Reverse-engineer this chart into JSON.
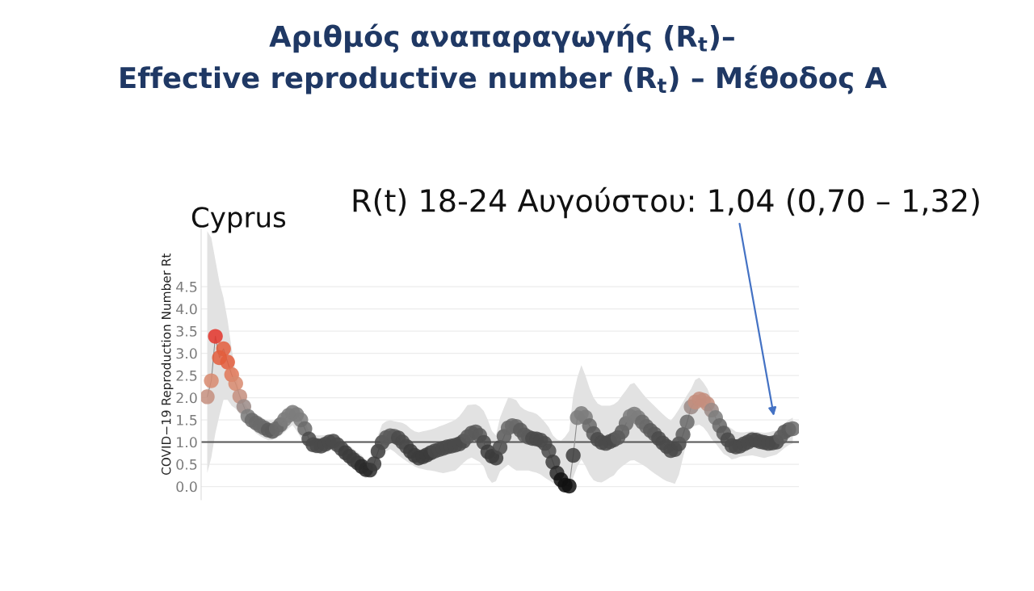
{
  "chart_data": {
    "type": "line",
    "title": "Αριθμός αναπαραγωγής (R$_{t}$)–\nEffective reproductive number (R$_{t}$) – Μέθοδος Α",
    "subtitle": "Cyprus",
    "ylabel": "COVID−19 Reproduction Number Rt",
    "annotations": [
      "R(t) 18-24 Αυγούστου: 1,04 (0,70 – 1,32)"
    ],
    "categories": [
      null,
      null,
      null,
      null,
      null,
      null,
      null,
      null,
      null,
      null,
      null,
      null,
      null,
      null,
      null,
      null,
      null,
      null,
      null,
      null,
      null,
      null,
      null,
      null,
      null,
      null,
      null,
      null,
      null,
      null,
      null,
      null,
      null,
      null,
      null,
      null,
      null,
      null,
      null,
      null,
      null,
      null,
      null,
      null,
      null,
      null,
      null,
      null,
      null,
      null,
      null,
      null,
      null,
      null,
      null,
      null,
      null,
      null,
      null,
      null,
      null,
      null,
      null,
      null,
      null,
      null,
      null,
      null,
      null,
      null,
      null,
      null,
      null,
      null,
      null,
      null,
      null,
      null,
      null,
      null,
      null,
      null,
      null,
      null,
      null,
      null,
      null,
      null,
      null,
      null,
      null,
      null,
      null,
      null,
      null,
      null,
      null,
      null,
      null,
      null,
      null,
      null,
      null,
      null,
      null,
      null,
      null,
      null,
      null,
      null,
      null,
      null,
      null,
      null,
      null,
      null,
      null,
      null,
      null,
      null,
      null,
      null,
      null,
      null,
      null,
      null,
      null,
      null,
      null,
      null,
      null,
      null,
      null,
      null,
      null,
      null,
      null,
      null,
      null,
      null,
      null,
      null,
      null,
      null,
      null
    ],
    "series": [
      {
        "color": "#8c8c8c",
        "values": [
          2.02,
          2.38,
          3.38,
          2.9,
          3.1,
          2.8,
          2.52,
          2.32,
          2.03,
          1.8,
          1.58,
          1.49,
          1.43,
          1.37,
          1.32,
          1.27,
          1.24,
          1.3,
          1.39,
          1.51,
          1.6,
          1.67,
          1.62,
          1.5,
          1.3,
          1.07,
          0.94,
          0.92,
          0.91,
          0.95,
          1.0,
          1.02,
          0.94,
          0.85,
          0.76,
          0.68,
          0.6,
          0.53,
          0.45,
          0.38,
          0.37,
          0.51,
          0.79,
          0.99,
          1.1,
          1.14,
          1.13,
          1.09,
          1.0,
          0.9,
          0.79,
          0.7,
          0.64,
          0.67,
          0.71,
          0.76,
          0.8,
          0.83,
          0.86,
          0.89,
          0.91,
          0.93,
          0.96,
          1.02,
          1.12,
          1.2,
          1.23,
          1.15,
          0.99,
          0.78,
          0.68,
          0.64,
          0.88,
          1.13,
          1.32,
          1.37,
          1.35,
          1.27,
          1.16,
          1.11,
          1.08,
          1.07,
          1.04,
          0.97,
          0.8,
          0.55,
          0.3,
          0.15,
          0.03,
          0.01,
          0.7,
          1.55,
          1.64,
          1.56,
          1.37,
          1.19,
          1.06,
          0.99,
          0.97,
          1.01,
          1.05,
          1.1,
          1.23,
          1.42,
          1.58,
          1.63,
          1.55,
          1.45,
          1.35,
          1.26,
          1.18,
          1.08,
          0.98,
          0.9,
          0.81,
          0.83,
          0.96,
          1.17,
          1.45,
          1.79,
          1.9,
          1.97,
          1.94,
          1.86,
          1.72,
          1.55,
          1.37,
          1.2,
          1.05,
          0.92,
          0.89,
          0.91,
          0.96,
          1.0,
          1.05,
          1.04,
          1.01,
          0.99,
          0.97,
          0.98,
          1.0,
          1.11,
          1.23,
          1.28,
          1.3
        ],
        "upper": [
          5.75,
          5.6,
          5.1,
          4.6,
          4.25,
          3.75,
          3.1,
          2.55,
          2.1,
          1.9,
          1.76,
          1.68,
          1.63,
          1.58,
          1.52,
          1.49,
          1.49,
          1.51,
          1.6,
          1.69,
          1.77,
          1.82,
          1.78,
          1.68,
          1.47,
          1.25,
          1.18,
          1.15,
          1.15,
          1.16,
          1.17,
          1.16,
          1.11,
          1.05,
          0.98,
          0.91,
          0.84,
          0.77,
          0.7,
          0.6,
          0.62,
          0.9,
          1.15,
          1.4,
          1.47,
          1.49,
          1.47,
          1.45,
          1.43,
          1.38,
          1.3,
          1.24,
          1.22,
          1.24,
          1.26,
          1.28,
          1.31,
          1.35,
          1.38,
          1.42,
          1.46,
          1.5,
          1.58,
          1.7,
          1.83,
          1.84,
          1.85,
          1.8,
          1.7,
          1.5,
          1.25,
          1.15,
          1.55,
          1.78,
          2.0,
          1.98,
          1.94,
          1.8,
          1.73,
          1.69,
          1.67,
          1.63,
          1.55,
          1.45,
          1.33,
          1.15,
          1.06,
          1.03,
          1.12,
          1.25,
          2.05,
          2.45,
          2.73,
          2.5,
          2.22,
          2.0,
          1.87,
          1.82,
          1.82,
          1.82,
          1.85,
          1.92,
          2.05,
          2.17,
          2.3,
          2.33,
          2.22,
          2.1,
          1.99,
          1.9,
          1.81,
          1.72,
          1.63,
          1.55,
          1.48,
          1.6,
          1.74,
          1.9,
          2.06,
          2.2,
          2.4,
          2.45,
          2.34,
          2.2,
          1.97,
          1.75,
          1.62,
          1.5,
          1.36,
          1.3,
          1.23,
          1.22,
          1.22,
          1.23,
          1.24,
          1.23,
          1.22,
          1.21,
          1.22,
          1.24,
          1.26,
          1.33,
          1.42,
          1.5,
          1.55
        ],
        "lower": [
          0.3,
          0.65,
          1.2,
          1.6,
          1.95,
          1.95,
          1.82,
          1.75,
          1.63,
          1.52,
          1.4,
          1.29,
          1.2,
          1.13,
          1.08,
          1.04,
          1.05,
          1.09,
          1.14,
          1.22,
          1.31,
          1.38,
          1.25,
          1.1,
          0.96,
          0.79,
          0.76,
          0.73,
          0.75,
          0.78,
          0.8,
          0.83,
          0.8,
          0.7,
          0.59,
          0.5,
          0.4,
          0.31,
          0.24,
          0.18,
          0.24,
          0.36,
          0.55,
          0.73,
          0.79,
          0.84,
          0.78,
          0.7,
          0.63,
          0.57,
          0.51,
          0.45,
          0.41,
          0.39,
          0.37,
          0.36,
          0.34,
          0.32,
          0.3,
          0.32,
          0.34,
          0.36,
          0.44,
          0.53,
          0.61,
          0.65,
          0.6,
          0.55,
          0.45,
          0.2,
          0.08,
          0.12,
          0.34,
          0.42,
          0.49,
          0.42,
          0.36,
          0.36,
          0.36,
          0.36,
          0.33,
          0.31,
          0.27,
          0.2,
          0.14,
          0.08,
          0.0,
          -0.09,
          -0.07,
          -0.02,
          0.2,
          0.45,
          0.61,
          0.46,
          0.27,
          0.14,
          0.1,
          0.09,
          0.14,
          0.2,
          0.25,
          0.37,
          0.45,
          0.52,
          0.58,
          0.59,
          0.54,
          0.49,
          0.43,
          0.36,
          0.29,
          0.23,
          0.17,
          0.12,
          0.09,
          0.06,
          0.27,
          0.65,
          1.03,
          1.32,
          1.37,
          1.39,
          1.33,
          1.22,
          1.07,
          0.97,
          0.85,
          0.73,
          0.68,
          0.61,
          0.63,
          0.67,
          0.68,
          0.69,
          0.7,
          0.68,
          0.66,
          0.64,
          0.67,
          0.69,
          0.72,
          0.79,
          0.87,
          0.93,
          0.97
        ],
        "colors": [
          "#c48e7e",
          "#d88a6e",
          "#e3342a",
          "#e35d3c",
          "#e35d3c",
          "#e35d3c",
          "#e07556",
          "#d88a6e",
          "#c48e7e",
          "#9a8a86",
          "#7c7c7c",
          "#6a6a6a",
          "#6a6a6a",
          "#6a6a6a",
          "#6a6a6a",
          "#5a5a5a",
          "#5a5a5a",
          "#6a6a6a",
          "#6a6a6a",
          "#7c7c7c",
          "#7c7c7c",
          "#7c7c7c",
          "#7c7c7c",
          "#7c7c7c",
          "#6a6a6a",
          "#4a4a4a",
          "#4a4a4a",
          "#4a4a4a",
          "#4a4a4a",
          "#4a4a4a",
          "#4a4a4a",
          "#4a4a4a",
          "#4a4a4a",
          "#4a4a4a",
          "#3c3c3c",
          "#3c3c3c",
          "#3c3c3c",
          "#3c3c3c",
          "#2a2a2a",
          "#2a2a2a",
          "#2a2a2a",
          "#3c3c3c",
          "#3c3c3c",
          "#4a4a4a",
          "#5a5a5a",
          "#5a5a5a",
          "#5a5a5a",
          "#4a4a4a",
          "#4a4a4a",
          "#4a4a4a",
          "#3c3c3c",
          "#3c3c3c",
          "#3c3c3c",
          "#3c3c3c",
          "#3c3c3c",
          "#3c3c3c",
          "#4a4a4a",
          "#4a4a4a",
          "#4a4a4a",
          "#4a4a4a",
          "#4a4a4a",
          "#4a4a4a",
          "#4a4a4a",
          "#4a4a4a",
          "#5a5a5a",
          "#5a5a5a",
          "#5a5a5a",
          "#5a5a5a",
          "#4a4a4a",
          "#3c3c3c",
          "#3c3c3c",
          "#3c3c3c",
          "#4a4a4a",
          "#5a5a5a",
          "#6a6a6a",
          "#6a6a6a",
          "#6a6a6a",
          "#5a5a5a",
          "#5a5a5a",
          "#5a5a5a",
          "#4a4a4a",
          "#4a4a4a",
          "#4a4a4a",
          "#4a4a4a",
          "#4a4a4a",
          "#3c3c3c",
          "#2a2a2a",
          "#111111",
          "#111111",
          "#111111",
          "#3c3c3c",
          "#7c7c7c",
          "#7c7c7c",
          "#7c7c7c",
          "#6a6a6a",
          "#5a5a5a",
          "#4a4a4a",
          "#4a4a4a",
          "#4a4a4a",
          "#4a4a4a",
          "#4a4a4a",
          "#5a5a5a",
          "#5a5a5a",
          "#6a6a6a",
          "#7c7c7c",
          "#7c7c7c",
          "#7c7c7c",
          "#6a6a6a",
          "#6a6a6a",
          "#5a5a5a",
          "#5a5a5a",
          "#4a4a4a",
          "#4a4a4a",
          "#4a4a4a",
          "#4a4a4a",
          "#4a4a4a",
          "#4a4a4a",
          "#5a5a5a",
          "#6a6a6a",
          "#9a8a86",
          "#c48e7e",
          "#c48e7e",
          "#c48e7e",
          "#c48e7e",
          "#9a8a86",
          "#7c7c7c",
          "#6a6a6a",
          "#5a5a5a",
          "#4a4a4a",
          "#4a4a4a",
          "#4a4a4a",
          "#4a4a4a",
          "#4a4a4a",
          "#4a4a4a",
          "#4a4a4a",
          "#4a4a4a",
          "#4a4a4a",
          "#4a4a4a",
          "#4a4a4a",
          "#4a4a4a",
          "#4a4a4a",
          "#5a5a5a",
          "#5a5a5a",
          "#5a5a5a",
          "#6a6a6a"
        ]
      }
    ],
    "ylim": [
      -0.3,
      5.8
    ],
    "yticks": [
      {
        "value": 0,
        "label": "0.0"
      },
      0.5,
      {
        "value": 1,
        "label": "1.0"
      },
      1.5,
      {
        "value": 2,
        "label": "2.0"
      },
      2.5,
      {
        "value": 3,
        "label": "3.0"
      },
      3.5,
      {
        "value": 4,
        "label": "4.0"
      },
      4.5
    ],
    "grid": "y",
    "marker": "circle",
    "ref_lines": [
      {
        "axis": "y",
        "value": 1,
        "color": "#555555"
      }
    ]
  }
}
